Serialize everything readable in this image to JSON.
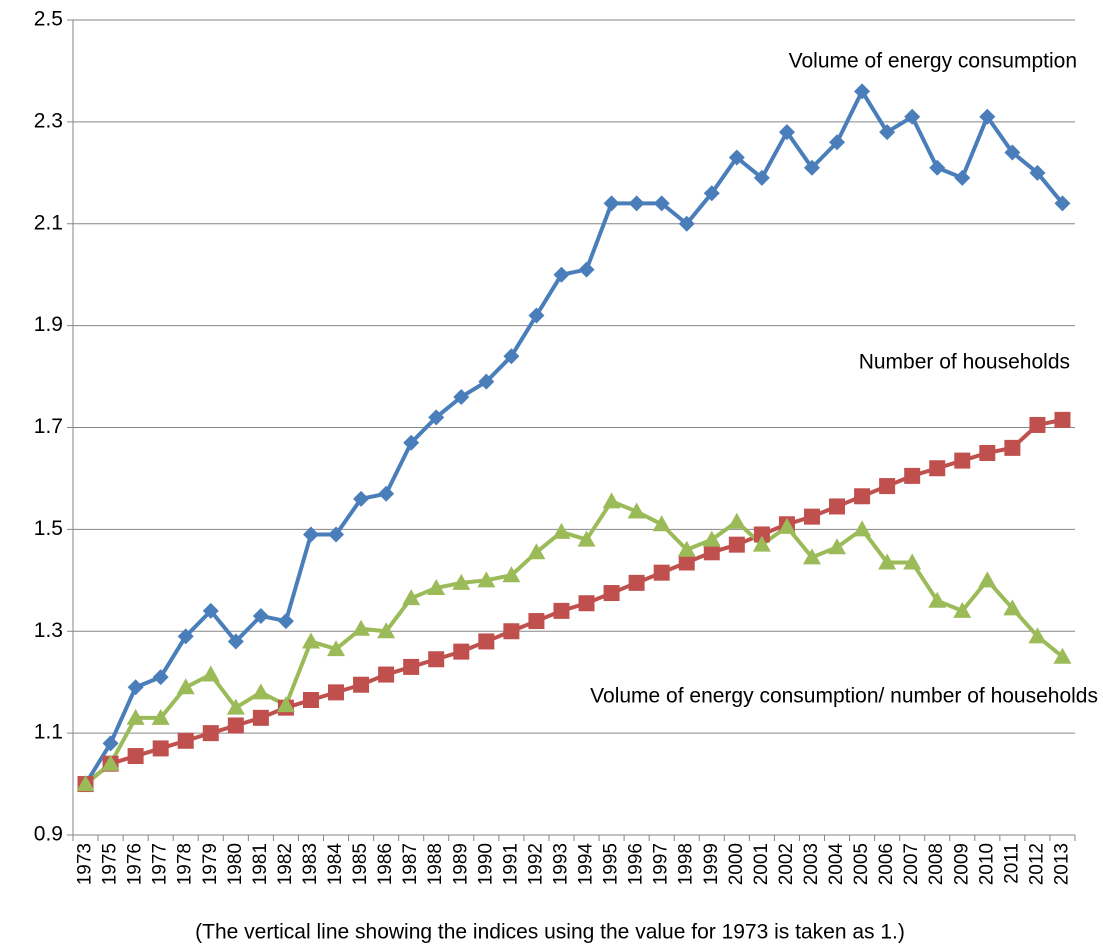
{
  "chart_data": {
    "type": "line",
    "categories": [
      "1973",
      "1975",
      "1976",
      "1977",
      "1978",
      "1979",
      "1980",
      "1981",
      "1982",
      "1983",
      "1984",
      "1985",
      "1986",
      "1987",
      "1988",
      "1989",
      "1990",
      "1991",
      "1992",
      "1993",
      "1994",
      "1995",
      "1996",
      "1997",
      "1998",
      "1999",
      "2000",
      "2001",
      "2002",
      "2003",
      "2004",
      "2005",
      "2006",
      "2007",
      "2008",
      "2009",
      "2010",
      "2011",
      "2012",
      "2013"
    ],
    "series": [
      {
        "name": "Volume of energy consumption",
        "color": "#4a7ebb",
        "marker": "diamond",
        "values": [
          1.0,
          1.08,
          1.19,
          1.21,
          1.29,
          1.34,
          1.28,
          1.33,
          1.32,
          1.49,
          1.49,
          1.56,
          1.57,
          1.67,
          1.72,
          1.76,
          1.79,
          1.84,
          1.92,
          2.0,
          2.01,
          2.14,
          2.14,
          2.14,
          2.1,
          2.16,
          2.23,
          2.19,
          2.28,
          2.21,
          2.26,
          2.36,
          2.28,
          2.31,
          2.21,
          2.19,
          2.31,
          2.24,
          2.2,
          2.14
        ]
      },
      {
        "name": "Number of households",
        "color": "#c0504d",
        "marker": "square",
        "values": [
          1.0,
          1.04,
          1.055,
          1.07,
          1.085,
          1.1,
          1.115,
          1.13,
          1.15,
          1.165,
          1.18,
          1.195,
          1.215,
          1.23,
          1.245,
          1.26,
          1.28,
          1.3,
          1.32,
          1.34,
          1.355,
          1.375,
          1.395,
          1.415,
          1.435,
          1.455,
          1.47,
          1.49,
          1.51,
          1.525,
          1.545,
          1.565,
          1.585,
          1.605,
          1.62,
          1.635,
          1.65,
          1.66,
          1.705,
          1.715
        ]
      },
      {
        "name": "Volume of energy consumption/ number of households",
        "color": "#9bbb59",
        "marker": "triangle",
        "values": [
          1.0,
          1.04,
          1.13,
          1.13,
          1.19,
          1.215,
          1.15,
          1.18,
          1.155,
          1.28,
          1.265,
          1.305,
          1.3,
          1.365,
          1.385,
          1.395,
          1.4,
          1.41,
          1.455,
          1.495,
          1.48,
          1.555,
          1.535,
          1.51,
          1.46,
          1.48,
          1.515,
          1.47,
          1.505,
          1.445,
          1.465,
          1.5,
          1.435,
          1.435,
          1.36,
          1.34,
          1.4,
          1.345,
          1.29,
          1.25
        ]
      }
    ],
    "ylim": [
      0.9,
      2.5
    ],
    "yticks": [
      0.9,
      1.1,
      1.3,
      1.5,
      1.7,
      1.9,
      2.1,
      2.3,
      2.5
    ],
    "grid": true,
    "note": "(The vertical line showing the indices using the value for 1973 is taken as 1.)"
  }
}
